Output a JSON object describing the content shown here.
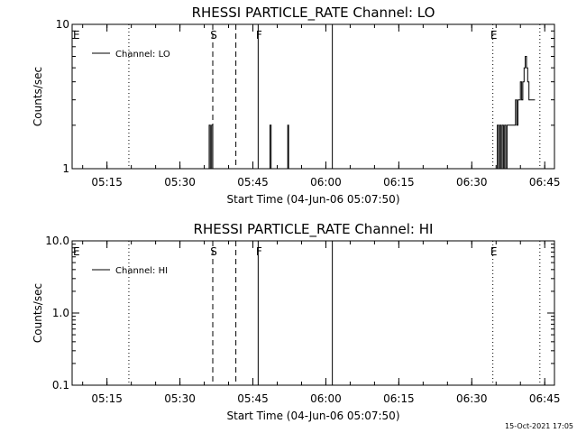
{
  "timestamp": "15-Oct-2021 17:05",
  "chart_data": [
    {
      "type": "line",
      "title": "RHESSI PARTICLE_RATE Channel: LO",
      "xlabel": "Start Time (04-Jun-06 05:07:50)",
      "ylabel": "Counts/sec",
      "yscale": "log",
      "xlim": [
        "05:07:50",
        "06:47:00"
      ],
      "ylim": [
        1,
        10
      ],
      "x_ticks": [
        "05:15",
        "05:30",
        "05:45",
        "06:00",
        "06:15",
        "06:30",
        "06:45"
      ],
      "y_ticks": [
        "1",
        "10"
      ],
      "legend": "top-left",
      "series": [
        {
          "name": "Channel: LO",
          "x": [
            "05:35:52",
            "05:36:00",
            "05:36:15",
            "05:36:30",
            "05:36:45",
            "05:37:00",
            "05:48:22",
            "05:48:30",
            "05:48:45",
            "05:52:00",
            "05:52:10",
            "05:52:20",
            "06:35:10",
            "06:35:15",
            "06:35:30",
            "06:35:45",
            "06:36:00",
            "06:36:15",
            "06:36:30",
            "06:36:45",
            "06:37:00",
            "06:37:15",
            "06:37:30",
            "06:37:45",
            "06:38:00",
            "06:38:15",
            "06:38:30",
            "06:38:45",
            "06:39:00",
            "06:39:15",
            "06:39:30",
            "06:39:45",
            "06:40:00",
            "06:40:15",
            "06:40:30",
            "06:40:45",
            "06:41:00",
            "06:41:15",
            "06:41:30",
            "06:41:45",
            "06:42:00",
            "06:42:15",
            "06:42:30",
            "06:42:45",
            "06:43:00"
          ],
          "values": [
            1,
            2,
            1,
            2,
            1,
            1,
            1,
            2,
            1,
            1,
            2,
            1,
            1,
            2,
            1,
            2,
            1,
            2,
            1,
            2,
            1,
            2,
            2,
            2,
            2,
            2,
            2,
            2,
            3,
            2,
            3,
            3,
            4,
            3,
            4,
            5,
            6,
            5,
            4,
            3,
            3,
            3,
            3,
            3,
            3
          ]
        }
      ],
      "markers": [
        {
          "label": "E",
          "time": "05:07:50",
          "style": "dotted"
        },
        {
          "label": "",
          "time": "05:19:30",
          "style": "dotted"
        },
        {
          "label": "S",
          "time": "05:36:45",
          "style": "dashed"
        },
        {
          "label": "",
          "time": "05:41:30",
          "style": "dashed"
        },
        {
          "label": "F",
          "time": "05:46:05",
          "style": "solid"
        },
        {
          "label": "",
          "time": "06:01:20",
          "style": "solid"
        },
        {
          "label": "E",
          "time": "06:34:20",
          "style": "dotted"
        },
        {
          "label": "",
          "time": "06:44:00",
          "style": "dotted"
        }
      ]
    },
    {
      "type": "line",
      "title": "RHESSI PARTICLE_RATE Channel: HI",
      "xlabel": "Start Time (04-Jun-06 05:07:50)",
      "ylabel": "Counts/sec",
      "yscale": "log",
      "xlim": [
        "05:07:50",
        "06:47:00"
      ],
      "ylim": [
        0.1,
        10.0
      ],
      "x_ticks": [
        "05:15",
        "05:30",
        "05:45",
        "06:00",
        "06:15",
        "06:30",
        "06:45"
      ],
      "y_ticks": [
        "0.1",
        "1.0",
        "10.0"
      ],
      "legend": "top-left",
      "series": [
        {
          "name": "Channel: HI",
          "x": [],
          "values": []
        }
      ],
      "markers": [
        {
          "label": "E",
          "time": "05:07:50",
          "style": "dotted"
        },
        {
          "label": "",
          "time": "05:19:30",
          "style": "dotted"
        },
        {
          "label": "S",
          "time": "05:36:45",
          "style": "dashed"
        },
        {
          "label": "",
          "time": "05:41:30",
          "style": "dashed"
        },
        {
          "label": "F",
          "time": "05:46:05",
          "style": "solid"
        },
        {
          "label": "",
          "time": "06:01:20",
          "style": "solid"
        },
        {
          "label": "E",
          "time": "06:34:20",
          "style": "dotted"
        },
        {
          "label": "",
          "time": "06:44:00",
          "style": "dotted"
        }
      ]
    }
  ]
}
